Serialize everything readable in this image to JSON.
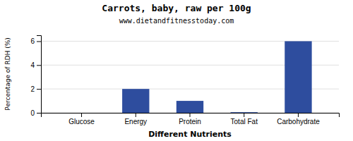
{
  "chart_data": {
    "type": "bar",
    "title": "Carrots, baby, raw per 100g",
    "subtitle": "www.dietandfitnesstoday.com",
    "xlabel": "Different Nutrients",
    "ylabel": "Percentage of RDH (%)",
    "categories": [
      "Glucose",
      "Energy",
      "Protein",
      "Total Fat",
      "Carbohydrate"
    ],
    "values": [
      0.0,
      2.0,
      1.0,
      0.05,
      6.0
    ],
    "color": "#2e4d9e",
    "ylim": [
      0,
      6.5
    ],
    "yticks": [
      0,
      2,
      4,
      6
    ],
    "grid": true
  }
}
